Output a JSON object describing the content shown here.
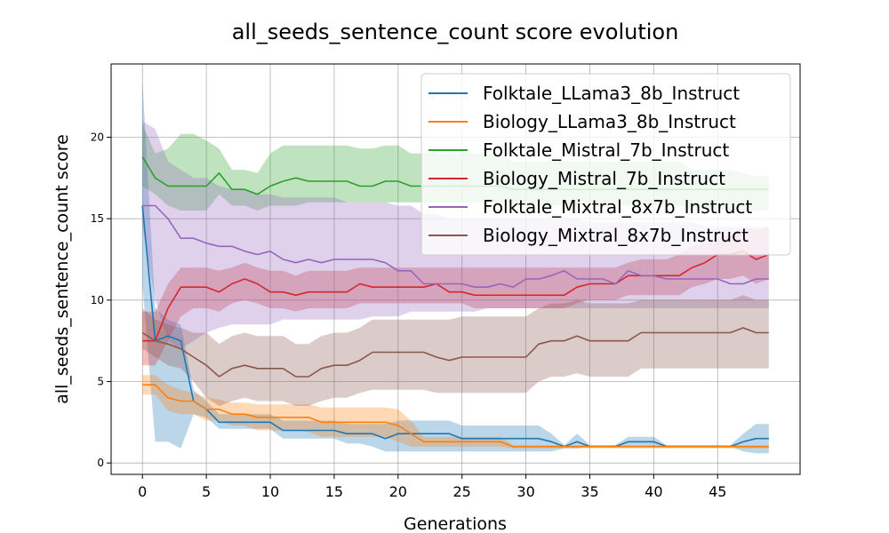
{
  "chart_data": {
    "type": "line",
    "title": "all_seeds_sentence_count score evolution",
    "xlabel": "Generations",
    "ylabel": "all_seeds_sentence_count score",
    "xlim": [
      -2.45,
      51.45
    ],
    "ylim": [
      -0.7,
      24.5
    ],
    "xticks": [
      0,
      5,
      10,
      15,
      20,
      25,
      30,
      35,
      40,
      45
    ],
    "yticks": [
      0,
      5,
      10,
      15,
      20
    ],
    "grid": true,
    "legend_position": "top-right",
    "x": [
      0,
      1,
      2,
      3,
      4,
      5,
      6,
      7,
      8,
      9,
      10,
      11,
      12,
      13,
      14,
      15,
      16,
      17,
      18,
      19,
      20,
      21,
      22,
      23,
      24,
      25,
      26,
      27,
      28,
      29,
      30,
      31,
      32,
      33,
      34,
      35,
      36,
      37,
      38,
      39,
      40,
      41,
      42,
      43,
      44,
      45,
      46,
      47,
      48,
      49
    ],
    "series": [
      {
        "name": "Folktale_LLama3_8b_Instruct",
        "color": "#1f77b4",
        "values": [
          15.8,
          7.5,
          7.8,
          7.5,
          3.8,
          3.3,
          2.5,
          2.5,
          2.5,
          2.5,
          2.5,
          2.0,
          2.0,
          2.0,
          2.0,
          2.0,
          1.8,
          1.8,
          1.8,
          1.5,
          1.8,
          1.8,
          1.8,
          1.8,
          1.8,
          1.5,
          1.5,
          1.5,
          1.5,
          1.5,
          1.5,
          1.5,
          1.3,
          1.0,
          1.3,
          1.0,
          1.0,
          1.0,
          1.3,
          1.3,
          1.3,
          1.0,
          1.0,
          1.0,
          1.0,
          1.0,
          1.0,
          1.3,
          1.5,
          1.5
        ],
        "lower": [
          11.0,
          1.3,
          1.3,
          0.9,
          3.0,
          2.8,
          2.1,
          2.1,
          2.1,
          2.1,
          2.1,
          1.5,
          1.5,
          1.5,
          1.5,
          1.5,
          1.2,
          1.2,
          1.0,
          0.7,
          0.7,
          0.7,
          0.7,
          0.7,
          0.7,
          0.7,
          0.7,
          0.7,
          0.7,
          0.7,
          0.7,
          0.7,
          0.7,
          0.9,
          0.9,
          1.0,
          1.0,
          1.0,
          1.0,
          1.0,
          1.0,
          1.0,
          1.0,
          1.0,
          1.0,
          1.0,
          1.0,
          0.7,
          0.6,
          0.6
        ],
        "upper": [
          23.5,
          9.5,
          8.8,
          8.5,
          4.5,
          3.8,
          3.0,
          3.0,
          3.0,
          3.0,
          3.0,
          2.6,
          2.6,
          2.6,
          2.6,
          2.6,
          2.4,
          2.4,
          2.4,
          2.4,
          2.6,
          2.6,
          2.6,
          2.6,
          2.6,
          2.3,
          2.3,
          2.3,
          2.3,
          2.3,
          2.3,
          2.3,
          1.8,
          1.1,
          1.8,
          1.1,
          1.1,
          1.1,
          1.6,
          1.6,
          1.6,
          1.1,
          1.1,
          1.1,
          1.1,
          1.1,
          1.1,
          1.8,
          2.4,
          2.4
        ]
      },
      {
        "name": "Biology_LLama3_8b_Instruct",
        "color": "#ff7f0e",
        "values": [
          4.8,
          4.8,
          4.0,
          3.8,
          3.8,
          3.3,
          3.3,
          3.0,
          3.0,
          2.8,
          2.8,
          2.8,
          2.8,
          2.8,
          2.5,
          2.5,
          2.5,
          2.5,
          2.5,
          2.5,
          2.3,
          1.8,
          1.3,
          1.3,
          1.3,
          1.3,
          1.3,
          1.3,
          1.3,
          1.0,
          1.0,
          1.0,
          1.0,
          1.0,
          1.0,
          1.0,
          1.0,
          1.0,
          1.0,
          1.0,
          1.0,
          1.0,
          1.0,
          1.0,
          1.0,
          1.0,
          1.0,
          1.0,
          1.0,
          1.0
        ],
        "lower": [
          4.2,
          4.2,
          3.2,
          3.0,
          3.0,
          2.6,
          2.6,
          2.3,
          2.3,
          2.0,
          2.0,
          2.0,
          2.0,
          1.9,
          1.6,
          1.6,
          1.6,
          1.6,
          1.6,
          1.6,
          1.3,
          1.0,
          1.0,
          1.0,
          1.0,
          1.0,
          1.0,
          1.0,
          1.0,
          0.9,
          0.9,
          0.9,
          0.9,
          0.9,
          0.9,
          0.9,
          0.9,
          0.9,
          0.9,
          0.9,
          0.9,
          0.9,
          0.9,
          0.9,
          0.9,
          0.9,
          0.9,
          0.9,
          0.9,
          0.9
        ],
        "upper": [
          5.4,
          5.4,
          4.8,
          4.5,
          4.3,
          4.0,
          3.9,
          3.7,
          3.7,
          3.6,
          3.6,
          3.6,
          3.6,
          3.6,
          3.4,
          3.4,
          3.4,
          3.4,
          3.4,
          3.4,
          3.3,
          2.6,
          1.6,
          1.6,
          1.6,
          1.6,
          1.6,
          1.6,
          1.6,
          1.1,
          1.1,
          1.1,
          1.1,
          1.1,
          1.1,
          1.1,
          1.1,
          1.1,
          1.1,
          1.1,
          1.1,
          1.1,
          1.1,
          1.1,
          1.1,
          1.1,
          1.1,
          1.1,
          1.1,
          1.1
        ]
      },
      {
        "name": "Folktale_Mistral_7b_Instruct",
        "color": "#2ca02c",
        "values": [
          18.8,
          17.5,
          17.0,
          17.0,
          17.0,
          17.0,
          17.8,
          16.8,
          16.8,
          16.5,
          17.0,
          17.3,
          17.5,
          17.3,
          17.3,
          17.3,
          17.3,
          17.0,
          17.0,
          17.3,
          17.3,
          17.0,
          17.0,
          17.0,
          17.0,
          17.0,
          17.0,
          17.0,
          17.0,
          16.8,
          16.8,
          16.8,
          16.8,
          16.8,
          16.8,
          16.8,
          16.8,
          16.8,
          16.8,
          16.8,
          16.8,
          16.8,
          16.8,
          16.8,
          16.8,
          16.8,
          16.8,
          16.8,
          16.8,
          16.8
        ],
        "lower": [
          17.0,
          16.5,
          15.8,
          15.5,
          15.5,
          15.5,
          16.5,
          15.8,
          15.8,
          15.5,
          15.8,
          15.8,
          15.8,
          16.0,
          16.0,
          16.0,
          16.0,
          16.0,
          16.0,
          16.0,
          16.0,
          16.0,
          16.0,
          16.0,
          16.0,
          16.0,
          16.0,
          16.0,
          16.0,
          15.8,
          15.8,
          15.8,
          15.8,
          15.8,
          15.8,
          15.8,
          15.8,
          15.8,
          15.8,
          15.8,
          15.8,
          15.8,
          15.8,
          15.5,
          15.5,
          15.5,
          15.5,
          15.5,
          15.5,
          15.5
        ],
        "upper": [
          20.8,
          19.0,
          19.3,
          20.2,
          20.2,
          19.8,
          19.3,
          18.0,
          18.0,
          17.8,
          19.0,
          19.5,
          19.5,
          19.5,
          19.5,
          19.5,
          19.5,
          19.3,
          19.3,
          19.5,
          19.5,
          19.0,
          19.0,
          19.0,
          19.0,
          19.0,
          19.0,
          19.0,
          19.0,
          18.5,
          18.5,
          18.5,
          18.5,
          18.5,
          18.5,
          18.5,
          18.5,
          18.5,
          18.5,
          18.5,
          18.5,
          18.5,
          18.5,
          18.0,
          18.0,
          18.0,
          18.0,
          17.8,
          17.6,
          17.6
        ]
      },
      {
        "name": "Biology_Mistral_7b_Instruct",
        "color": "#d62728",
        "values": [
          7.5,
          7.5,
          9.5,
          10.8,
          10.8,
          10.8,
          10.5,
          11.0,
          11.3,
          11.0,
          10.5,
          10.5,
          10.3,
          10.5,
          10.5,
          10.5,
          10.5,
          11.0,
          10.8,
          10.8,
          10.8,
          10.8,
          10.8,
          11.0,
          10.5,
          10.5,
          10.3,
          10.3,
          10.3,
          10.3,
          10.3,
          10.3,
          10.3,
          10.3,
          10.8,
          11.0,
          11.0,
          11.0,
          11.5,
          11.5,
          11.5,
          11.5,
          11.5,
          12.0,
          12.3,
          12.8,
          12.8,
          13.0,
          12.5,
          12.8
        ],
        "lower": [
          6.0,
          6.0,
          7.5,
          9.0,
          9.5,
          9.5,
          9.3,
          9.8,
          10.0,
          9.8,
          9.5,
          9.5,
          9.3,
          9.5,
          9.5,
          9.5,
          9.5,
          9.8,
          9.8,
          9.8,
          9.8,
          9.8,
          9.8,
          9.8,
          9.8,
          9.8,
          9.5,
          9.5,
          9.5,
          9.5,
          9.5,
          9.5,
          9.5,
          9.5,
          9.8,
          10.0,
          10.0,
          10.0,
          10.3,
          10.3,
          10.3,
          10.3,
          10.3,
          10.8,
          11.0,
          11.3,
          11.3,
          11.5,
          11.0,
          11.3
        ],
        "upper": [
          9.3,
          9.3,
          11.0,
          12.0,
          12.0,
          12.0,
          11.8,
          12.0,
          12.3,
          12.0,
          11.8,
          11.8,
          11.5,
          11.8,
          11.8,
          11.8,
          11.8,
          12.0,
          12.0,
          12.0,
          12.0,
          12.0,
          12.0,
          12.0,
          12.0,
          12.0,
          12.0,
          12.0,
          12.0,
          12.0,
          12.0,
          12.0,
          12.0,
          12.0,
          12.0,
          12.0,
          12.0,
          12.0,
          12.3,
          12.5,
          12.5,
          12.5,
          12.8,
          13.3,
          13.5,
          13.8,
          14.0,
          14.5,
          14.3,
          14.5
        ]
      },
      {
        "name": "Folktale_Mixtral_8x7b_Instruct",
        "color": "#9467bd",
        "values": [
          15.8,
          15.8,
          15.0,
          13.8,
          13.8,
          13.5,
          13.3,
          13.3,
          13.0,
          12.8,
          13.0,
          12.5,
          12.3,
          12.5,
          12.3,
          12.5,
          12.5,
          12.5,
          12.5,
          12.3,
          11.8,
          11.8,
          11.0,
          11.0,
          11.0,
          11.0,
          10.8,
          10.8,
          11.0,
          10.8,
          11.3,
          11.3,
          11.5,
          11.8,
          11.3,
          11.3,
          11.3,
          11.0,
          11.8,
          11.5,
          11.5,
          11.3,
          11.3,
          11.3,
          11.3,
          11.3,
          11.0,
          11.0,
          11.3,
          11.3
        ],
        "lower": [
          14.5,
          10.0,
          7.5,
          7.0,
          7.5,
          8.0,
          8.3,
          8.5,
          8.5,
          8.5,
          8.5,
          8.8,
          8.8,
          8.8,
          8.8,
          8.8,
          8.8,
          8.8,
          9.0,
          9.0,
          9.0,
          9.3,
          9.3,
          9.3,
          9.3,
          9.3,
          9.3,
          9.5,
          9.5,
          9.5,
          9.5,
          9.5,
          9.5,
          9.5,
          9.5,
          9.5,
          9.5,
          9.5,
          9.5,
          9.5,
          9.5,
          9.5,
          9.5,
          9.5,
          9.5,
          9.5,
          9.5,
          9.5,
          9.5,
          9.5
        ],
        "upper": [
          21.0,
          20.5,
          18.5,
          18.0,
          17.5,
          17.5,
          17.0,
          16.8,
          16.8,
          16.5,
          16.5,
          16.3,
          16.3,
          16.3,
          16.3,
          16.3,
          16.0,
          16.0,
          16.0,
          16.0,
          15.8,
          15.8,
          15.3,
          15.3,
          15.0,
          15.0,
          15.0,
          15.0,
          15.0,
          15.0,
          15.0,
          15.0,
          15.0,
          15.0,
          15.0,
          14.8,
          14.8,
          14.8,
          14.8,
          14.8,
          14.8,
          14.8,
          14.8,
          14.8,
          14.5,
          14.5,
          14.5,
          14.5,
          14.5,
          14.5
        ]
      },
      {
        "name": "Biology_Mixtral_8x7b_Instruct",
        "color": "#8c564b",
        "values": [
          8.0,
          7.5,
          7.3,
          7.0,
          6.5,
          6.0,
          5.3,
          5.8,
          6.0,
          5.8,
          5.8,
          5.8,
          5.3,
          5.3,
          5.8,
          6.0,
          6.0,
          6.3,
          6.8,
          6.8,
          6.8,
          6.8,
          6.8,
          6.5,
          6.3,
          6.5,
          6.5,
          6.5,
          6.5,
          6.5,
          6.5,
          7.3,
          7.5,
          7.5,
          7.8,
          7.5,
          7.5,
          7.5,
          7.5,
          8.0,
          8.0,
          8.0,
          8.0,
          8.0,
          8.0,
          8.0,
          8.0,
          8.3,
          8.0,
          8.0
        ],
        "lower": [
          7.0,
          6.5,
          6.0,
          5.8,
          5.0,
          4.0,
          3.5,
          3.8,
          4.0,
          3.8,
          3.8,
          3.8,
          3.5,
          3.5,
          3.8,
          4.0,
          4.0,
          4.3,
          4.5,
          4.5,
          4.5,
          4.5,
          4.5,
          4.3,
          4.3,
          4.3,
          4.3,
          4.3,
          4.3,
          4.3,
          4.3,
          5.0,
          5.3,
          5.3,
          5.5,
          5.3,
          5.3,
          5.3,
          5.3,
          5.8,
          5.8,
          5.8,
          5.8,
          5.8,
          5.8,
          5.8,
          5.8,
          5.8,
          5.8,
          5.8
        ],
        "upper": [
          9.5,
          8.8,
          8.5,
          8.3,
          8.0,
          8.0,
          7.3,
          7.8,
          8.0,
          7.8,
          7.8,
          7.8,
          7.3,
          7.3,
          7.8,
          8.0,
          8.0,
          8.3,
          8.8,
          8.8,
          8.8,
          8.8,
          8.8,
          8.8,
          8.8,
          9.0,
          9.0,
          9.0,
          9.0,
          9.0,
          9.0,
          9.5,
          9.8,
          9.8,
          10.0,
          9.8,
          9.8,
          9.8,
          9.8,
          10.0,
          10.0,
          10.0,
          10.0,
          10.0,
          10.0,
          10.0,
          10.0,
          10.3,
          10.0,
          10.0
        ]
      }
    ]
  }
}
